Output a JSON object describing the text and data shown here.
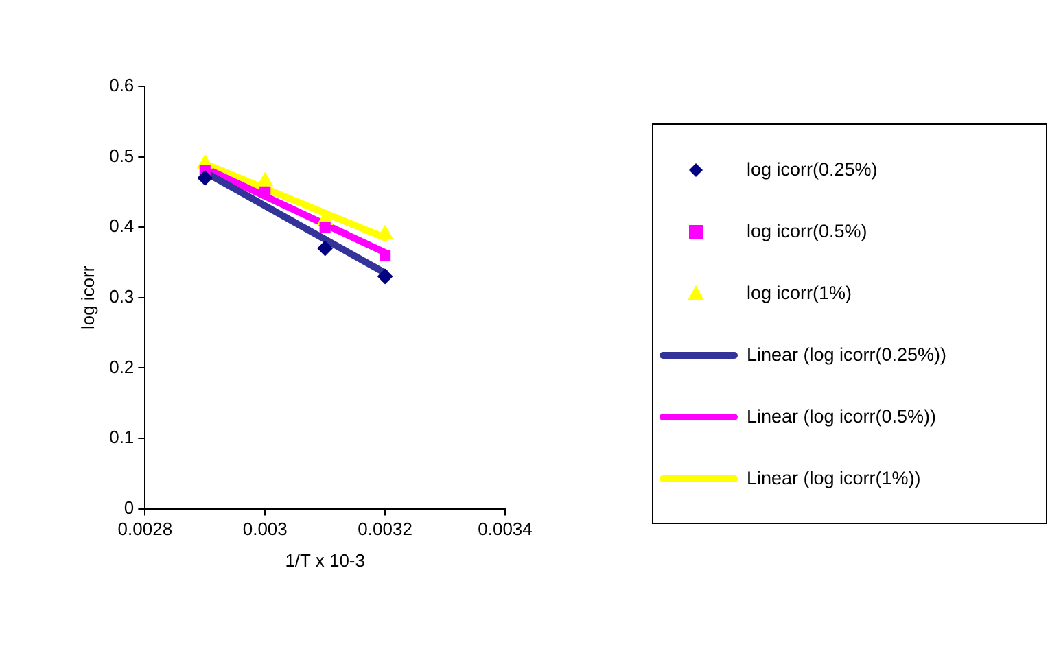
{
  "chart_data": {
    "type": "scatter",
    "xlabel": "1/T x 10-3",
    "ylabel": "log icorr",
    "xlim": [
      0.0028,
      0.0034
    ],
    "xticks": [
      0.0028,
      0.003,
      0.0032,
      0.0034
    ],
    "ylim": [
      0,
      0.6
    ],
    "yticks": [
      0,
      0.1,
      0.2,
      0.3,
      0.4,
      0.5,
      0.6
    ],
    "grid": false,
    "legend": "right",
    "series": [
      {
        "name": "log icorr(0.25%)",
        "type": "scatter",
        "marker": "diamond",
        "color": "#000080",
        "x": [
          0.0029,
          0.003,
          0.0031,
          0.0032
        ],
        "values": [
          0.47,
          null,
          0.37,
          0.33
        ]
      },
      {
        "name": "log icorr(0.5%)",
        "type": "scatter",
        "marker": "square",
        "color": "#ff00ff",
        "x": [
          0.0029,
          0.003,
          0.0031,
          0.0032
        ],
        "values": [
          0.48,
          0.45,
          0.4,
          0.36
        ]
      },
      {
        "name": "log icorr(1%)",
        "type": "scatter",
        "marker": "triangle",
        "color": "#ffff00",
        "x": [
          0.0029,
          0.003,
          0.0031,
          0.0032
        ],
        "values": [
          0.49,
          0.465,
          0.41,
          0.39
        ]
      },
      {
        "name": "Linear (log icorr(0.25%))",
        "type": "line",
        "marker": "none",
        "color": "#333399",
        "x": [
          0.0029,
          0.0032
        ],
        "values": [
          0.478,
          0.335
        ]
      },
      {
        "name": "Linear (log icorr(0.5%))",
        "type": "line",
        "marker": "none",
        "color": "#ff00ff",
        "x": [
          0.0029,
          0.0032
        ],
        "values": [
          0.484,
          0.364
        ]
      },
      {
        "name": "Linear (log icorr(1%))",
        "type": "line",
        "marker": "none",
        "color": "#ffff00",
        "x": [
          0.0029,
          0.0032
        ],
        "values": [
          0.49,
          0.385
        ]
      }
    ]
  }
}
